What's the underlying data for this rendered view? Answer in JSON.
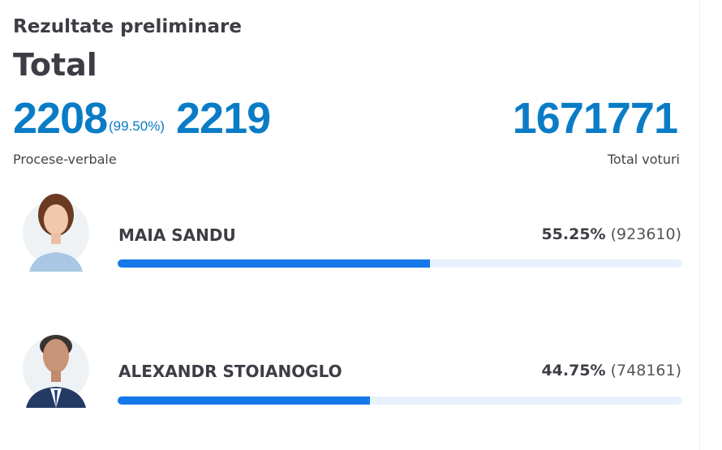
{
  "header": {
    "subtitle": "Rezultate preliminare",
    "title": "Total"
  },
  "stats": {
    "processed": "2208",
    "processed_pct": "(99.50%)",
    "total_reports": "2219",
    "reports_label": "Procese-verbale",
    "total_votes": "1671771",
    "votes_label": "Total voturi"
  },
  "colors": {
    "accent": "#0a7cc6",
    "bar": "#1478e8",
    "track": "#e8f1fb"
  },
  "candidates": [
    {
      "name": "MAIA SANDU",
      "percent": "55.25%",
      "votes": "(923610)",
      "share": 55.25,
      "icon": "candidate-photo"
    },
    {
      "name": "ALEXANDR STOIANOGLO",
      "percent": "44.75%",
      "votes": "(748161)",
      "share": 44.75,
      "icon": "candidate-photo"
    }
  ]
}
